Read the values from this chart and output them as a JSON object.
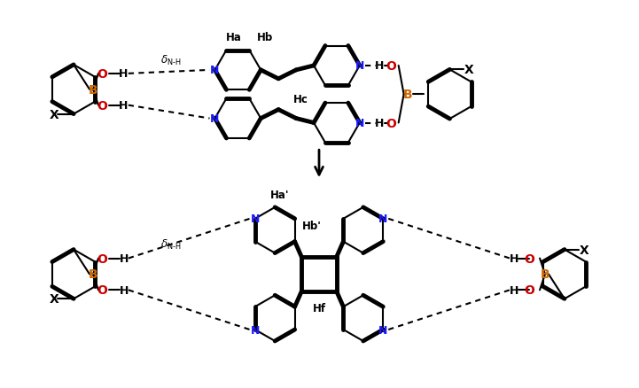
{
  "bg_color": "#ffffff",
  "black": "#000000",
  "blue": "#1a1aff",
  "red": "#cc0000",
  "orange": "#cc6600",
  "fig_width": 7.21,
  "fig_height": 4.39,
  "dpi": 100,
  "xlim": [
    0,
    7.21
  ],
  "ylim": [
    0,
    4.39
  ]
}
